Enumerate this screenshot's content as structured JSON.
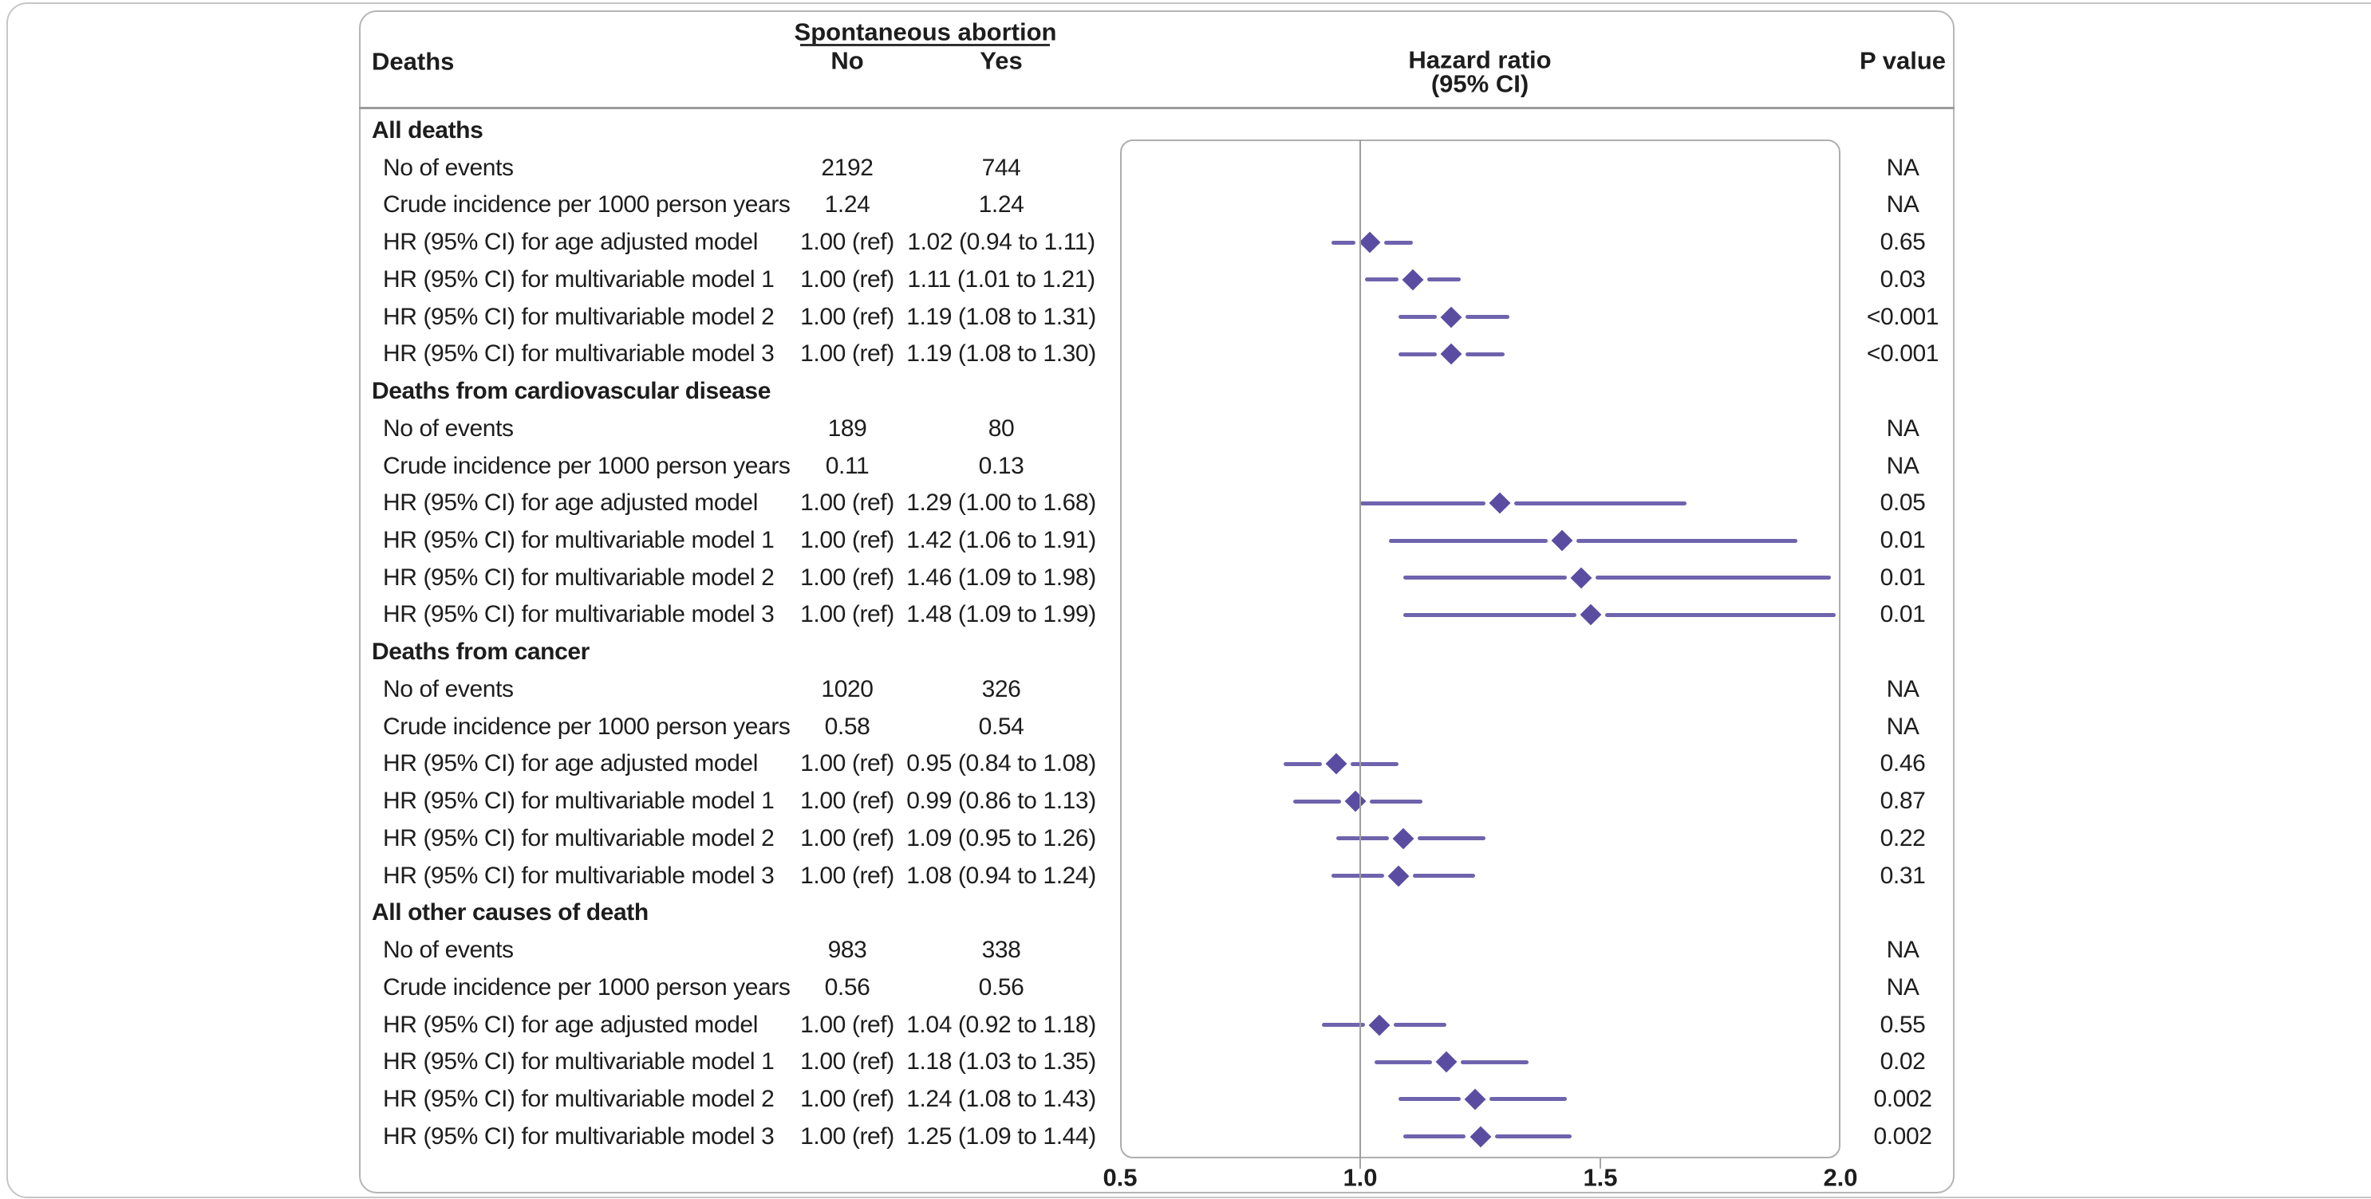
{
  "colors": {
    "ci_line_purple": "#6e63ad",
    "diamond_purple": "#5a4da1",
    "panel_border_grey": "#b5b5b5",
    "card_border_grey": "#c6c6c6",
    "separator_grey": "#9b9b9b",
    "reference_line_grey": "#9e9e9e",
    "tick_grey": "#a5a5a5",
    "text": "#1d1d1d"
  },
  "header": {
    "deaths_label": "Deaths",
    "group_label": "Spontaneous abortion",
    "col_no": "No",
    "col_yes": "Yes",
    "hr_label_line1": "Hazard ratio",
    "hr_label_line2": "(95% CI)",
    "p_label": "P value"
  },
  "chart_data": {
    "type": "forest",
    "title": "Hazard ratio (95% CI)",
    "axis": {
      "min": 0.5,
      "max": 2.0,
      "ticks": [
        0.5,
        1.0,
        1.5,
        2.0
      ],
      "tick_labels": [
        "0.5",
        "1.0",
        "1.5",
        "2.0"
      ],
      "reference_line": 1.0,
      "grid": false
    },
    "legend": null,
    "sections": [
      {
        "title": "All deaths",
        "rows": [
          {
            "label": "No of events",
            "no": "2192",
            "yes": "744",
            "p": "NA"
          },
          {
            "label": "Crude incidence per 1000 person years",
            "no": "1.24",
            "yes": "1.24",
            "p": "NA"
          },
          {
            "label": "HR (95% CI) for age adjusted model",
            "no": "1.00 (ref)",
            "yes": "1.02 (0.94 to 1.11)",
            "p": "0.65",
            "hr": 1.02,
            "lo": 0.94,
            "hi": 1.11
          },
          {
            "label": "HR (95% CI) for multivariable model 1",
            "no": "1.00 (ref)",
            "yes": "1.11 (1.01 to 1.21)",
            "p": "0.03",
            "hr": 1.11,
            "lo": 1.01,
            "hi": 1.21
          },
          {
            "label": "HR (95% CI) for multivariable model 2",
            "no": "1.00 (ref)",
            "yes": "1.19 (1.08 to 1.31)",
            "p": "<0.001",
            "hr": 1.19,
            "lo": 1.08,
            "hi": 1.31
          },
          {
            "label": "HR (95% CI) for multivariable model 3",
            "no": "1.00 (ref)",
            "yes": "1.19 (1.08 to 1.30)",
            "p": "<0.001",
            "hr": 1.19,
            "lo": 1.08,
            "hi": 1.3
          }
        ]
      },
      {
        "title": "Deaths from cardiovascular disease",
        "rows": [
          {
            "label": "No of events",
            "no": "189",
            "yes": "80",
            "p": "NA"
          },
          {
            "label": "Crude incidence per 1000 person years",
            "no": "0.11",
            "yes": "0.13",
            "p": "NA"
          },
          {
            "label": "HR (95% CI) for age adjusted model",
            "no": "1.00 (ref)",
            "yes": "1.29 (1.00 to 1.68)",
            "p": "0.05",
            "hr": 1.29,
            "lo": 1.0,
            "hi": 1.68
          },
          {
            "label": "HR (95% CI) for multivariable model 1",
            "no": "1.00 (ref)",
            "yes": "1.42 (1.06 to 1.91)",
            "p": "0.01",
            "hr": 1.42,
            "lo": 1.06,
            "hi": 1.91
          },
          {
            "label": "HR (95% CI) for multivariable model 2",
            "no": "1.00 (ref)",
            "yes": "1.46 (1.09 to 1.98)",
            "p": "0.01",
            "hr": 1.46,
            "lo": 1.09,
            "hi": 1.98
          },
          {
            "label": "HR (95% CI) for multivariable model 3",
            "no": "1.00 (ref)",
            "yes": "1.48 (1.09 to 1.99)",
            "p": "0.01",
            "hr": 1.48,
            "lo": 1.09,
            "hi": 1.99
          }
        ]
      },
      {
        "title": "Deaths from cancer",
        "rows": [
          {
            "label": "No of events",
            "no": "1020",
            "yes": "326",
            "p": "NA"
          },
          {
            "label": "Crude incidence per 1000 person years",
            "no": "0.58",
            "yes": "0.54",
            "p": "NA"
          },
          {
            "label": "HR (95% CI) for age adjusted model",
            "no": "1.00 (ref)",
            "yes": "0.95 (0.84 to 1.08)",
            "p": "0.46",
            "hr": 0.95,
            "lo": 0.84,
            "hi": 1.08
          },
          {
            "label": "HR (95% CI) for multivariable model 1",
            "no": "1.00 (ref)",
            "yes": "0.99 (0.86 to 1.13)",
            "p": "0.87",
            "hr": 0.99,
            "lo": 0.86,
            "hi": 1.13
          },
          {
            "label": "HR (95% CI) for multivariable model 2",
            "no": "1.00 (ref)",
            "yes": "1.09 (0.95 to 1.26)",
            "p": "0.22",
            "hr": 1.09,
            "lo": 0.95,
            "hi": 1.26
          },
          {
            "label": "HR (95% CI) for multivariable model 3",
            "no": "1.00 (ref)",
            "yes": "1.08 (0.94 to 1.24)",
            "p": "0.31",
            "hr": 1.08,
            "lo": 0.94,
            "hi": 1.24
          }
        ]
      },
      {
        "title": "All other causes of death",
        "rows": [
          {
            "label": "No of events",
            "no": "983",
            "yes": "338",
            "p": "NA"
          },
          {
            "label": "Crude incidence per 1000 person years",
            "no": "0.56",
            "yes": "0.56",
            "p": "NA"
          },
          {
            "label": "HR (95% CI) for age adjusted model",
            "no": "1.00 (ref)",
            "yes": "1.04 (0.92 to 1.18)",
            "p": "0.55",
            "hr": 1.04,
            "lo": 0.92,
            "hi": 1.18
          },
          {
            "label": "HR (95% CI) for multivariable model 1",
            "no": "1.00 (ref)",
            "yes": "1.18 (1.03 to 1.35)",
            "p": "0.02",
            "hr": 1.18,
            "lo": 1.03,
            "hi": 1.35
          },
          {
            "label": "HR (95% CI) for multivariable model 2",
            "no": "1.00 (ref)",
            "yes": "1.24 (1.08 to 1.43)",
            "p": "0.002",
            "hr": 1.24,
            "lo": 1.08,
            "hi": 1.43
          },
          {
            "label": "HR (95% CI) for multivariable model 3",
            "no": "1.00 (ref)",
            "yes": "1.25 (1.09 to 1.44)",
            "p": "0.002",
            "hr": 1.25,
            "lo": 1.09,
            "hi": 1.44
          }
        ]
      }
    ]
  }
}
